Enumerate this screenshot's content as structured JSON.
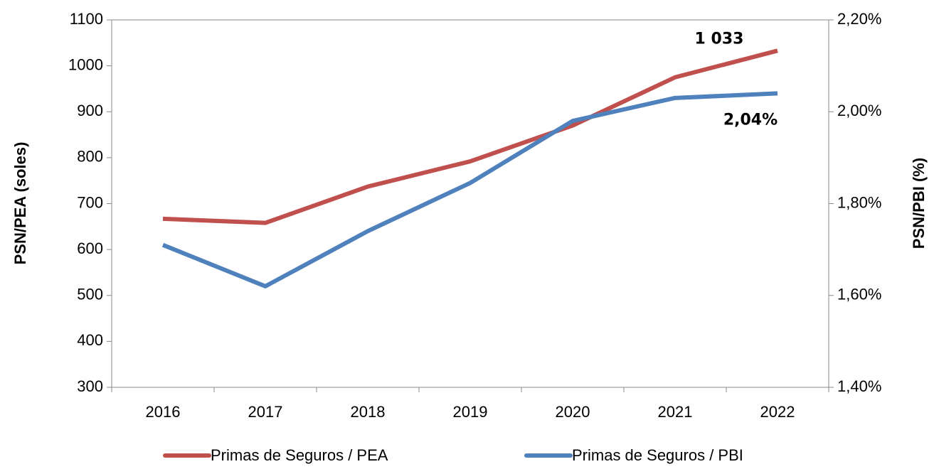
{
  "chart_data": {
    "type": "line",
    "categories": [
      "2016",
      "2017",
      "2018",
      "2019",
      "2020",
      "2021",
      "2022"
    ],
    "series": [
      {
        "name": "Primas de Seguros / PEA",
        "color": "#c0504d",
        "values": [
          667,
          658,
          737,
          792,
          870,
          975,
          1033
        ],
        "value_labels": [
          null,
          null,
          null,
          null,
          null,
          null,
          "1 033"
        ]
      },
      {
        "name": "Primas de Seguros / PBI",
        "color": "#4f81bd",
        "axis": "y2",
        "values": [
          1.71,
          1.62,
          1.74,
          1.845,
          1.98,
          2.03,
          2.04
        ],
        "value_labels": [
          null,
          null,
          null,
          null,
          null,
          null,
          "2,04%"
        ]
      }
    ],
    "ylabel": "PSN/PEA (soles)",
    "y2label": "PSN/PBI (%)",
    "ylim": [
      300,
      1100
    ],
    "yticks": [
      300,
      400,
      500,
      600,
      700,
      800,
      900,
      1000,
      1100
    ],
    "y2lim": [
      1.4,
      2.2
    ],
    "y2ticks": [
      {
        "value": 1.4,
        "label": "1,40%"
      },
      {
        "value": 1.6,
        "label": "1,60%"
      },
      {
        "value": 1.8,
        "label": "1,80%"
      },
      {
        "value": 2.0,
        "label": "2,00%"
      },
      {
        "value": 2.2,
        "label": "2,20%"
      }
    ],
    "legend": "bottom"
  }
}
